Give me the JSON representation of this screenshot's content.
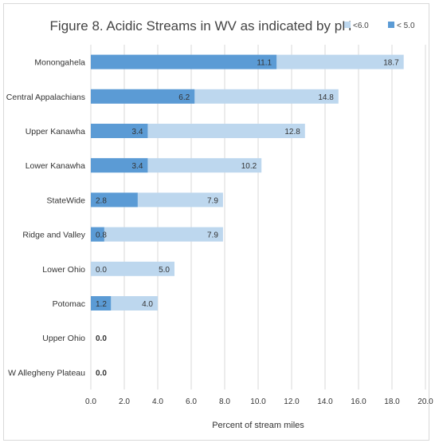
{
  "chart_data": {
    "type": "bar",
    "orientation": "horizontal",
    "title": "Figure 8. Acidic Streams in WV as indicated by pH",
    "xlabel": "Percent of stream miles",
    "ylabel": "",
    "xlim": [
      0,
      20
    ],
    "x_ticks": [
      "0.0",
      "2.0",
      "4.0",
      "6.0",
      "8.0",
      "10.0",
      "12.0",
      "14.0",
      "16.0",
      "18.0",
      "20.0"
    ],
    "grid": true,
    "legend_position": "top-right",
    "categories": [
      "Monongahela",
      "Central Appalachians",
      "Upper Kanawha",
      "Lower Kanawha",
      "StateWide",
      "Ridge and Valley",
      "Lower Ohio",
      "Potomac",
      "Upper Ohio",
      "W Allegheny Plateau"
    ],
    "series": [
      {
        "name": "<6.0",
        "color": "#bdd7ee",
        "values": [
          18.7,
          14.8,
          12.8,
          10.2,
          7.9,
          7.9,
          5.0,
          4.0,
          0.0,
          0.0
        ],
        "labels": [
          "18.7",
          "14.8",
          "12.8",
          "10.2",
          "7.9",
          "7.9",
          "5.0",
          "4.0",
          "",
          ""
        ]
      },
      {
        "name": "< 5.0",
        "color": "#5b9bd5",
        "values": [
          11.1,
          6.2,
          3.4,
          3.4,
          2.8,
          0.8,
          0.0,
          1.2,
          0.0,
          0.0
        ],
        "labels": [
          "11.1",
          "6.2",
          "3.4",
          "3.4",
          "2.8",
          "0.8",
          "0.0",
          "1.2",
          "0.0",
          "0.0"
        ]
      }
    ]
  }
}
